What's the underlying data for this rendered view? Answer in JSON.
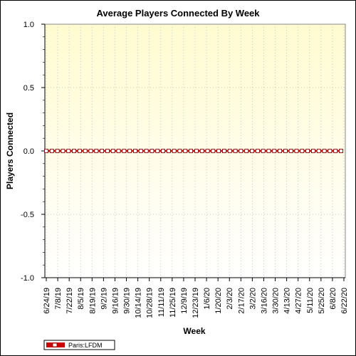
{
  "chart_data": {
    "type": "line",
    "title": "Average Players Connected By Week",
    "xlabel": "Week",
    "ylabel": "Players Connected",
    "ylim": [
      -1.0,
      1.0
    ],
    "y_ticks": [
      "1.0",
      "0.5",
      "0.0",
      "-0.5",
      "-1.0"
    ],
    "grid": true,
    "legend_position": "bottom-left",
    "colors": {
      "series": "#cc0000",
      "plot_bg_top": "#fffbd0",
      "plot_bg_bottom": "#ffffff",
      "grid": "#bbbbbb"
    },
    "x_tick_labels": [
      "6/24/19",
      "7/8/19",
      "7/22/19",
      "8/5/19",
      "8/19/19",
      "9/2/19",
      "9/16/19",
      "9/30/19",
      "10/14/19",
      "10/28/19",
      "11/11/19",
      "11/25/19",
      "12/9/19",
      "12/23/19",
      "1/6/20",
      "1/20/20",
      "2/3/20",
      "2/17/20",
      "3/2/20",
      "3/16/20",
      "3/30/20",
      "4/13/20",
      "4/27/20",
      "5/11/20",
      "5/25/20",
      "6/8/20",
      "6/22/20"
    ],
    "series": [
      {
        "name": "Paris:LFDM",
        "values": [
          0,
          0,
          0,
          0,
          0,
          0,
          0,
          0,
          0,
          0,
          0,
          0,
          0,
          0,
          0,
          0,
          0,
          0,
          0,
          0,
          0,
          0,
          0,
          0,
          0,
          0,
          0,
          0,
          0,
          0,
          0,
          0,
          0,
          0,
          0,
          0,
          0,
          0,
          0,
          0,
          0,
          0,
          0,
          0,
          0,
          0,
          0,
          0,
          0,
          0,
          0,
          0,
          0,
          0
        ]
      }
    ]
  }
}
